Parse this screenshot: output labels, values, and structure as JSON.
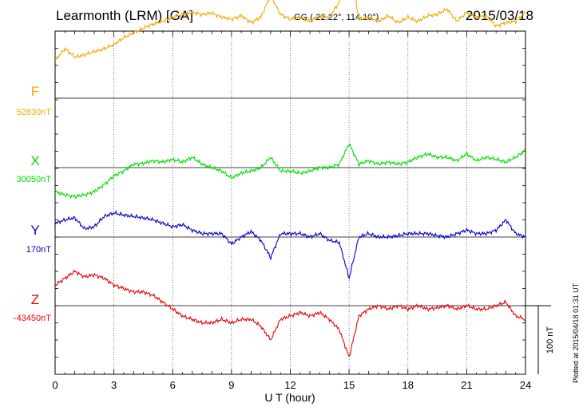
{
  "header": {
    "station": "Learmonth (LRM)  [GA]",
    "coords": "GG (-22.22°, 114.10°)",
    "date": "2015/03/18"
  },
  "side_note": "Plotted at 2015/04/18 01:31  UT",
  "scale_bar_label": "100 nT",
  "chart_data": {
    "type": "line",
    "xlabel": "U T (hour)",
    "x_ticks": [
      "0",
      "3",
      "6",
      "9",
      "12",
      "15",
      "18",
      "21",
      "24"
    ],
    "xlim": [
      0,
      24
    ],
    "grid": true,
    "scale_nT_per_bar": 100,
    "x": [
      0,
      0.5,
      1,
      1.5,
      2,
      2.5,
      3,
      3.5,
      4,
      4.5,
      5,
      5.5,
      6,
      6.5,
      7,
      7.5,
      8,
      8.5,
      9,
      9.5,
      10,
      10.5,
      11,
      11.5,
      12,
      12.5,
      13,
      13.5,
      14,
      14.5,
      15,
      15.5,
      16,
      16.5,
      17,
      17.5,
      18,
      18.5,
      19,
      19.5,
      20,
      20.5,
      21,
      21.5,
      22,
      22.5,
      23,
      23.5,
      24
    ],
    "series": [
      {
        "name": "F",
        "baseline_label": "52830nT",
        "color": "#f0a800",
        "values": [
          55,
          72,
          60,
          63,
          68,
          72,
          78,
          88,
          95,
          102,
          108,
          112,
          118,
          122,
          125,
          122,
          124,
          118,
          115,
          120,
          110,
          118,
          150,
          122,
          115,
          118,
          112,
          120,
          118,
          140,
          200,
          115,
          118,
          112,
          120,
          110,
          118,
          112,
          120,
          122,
          130,
          112,
          125,
          118,
          120,
          105,
          110,
          112,
          125
        ]
      },
      {
        "name": "X",
        "baseline_label": "30050nT",
        "color": "#00dd00",
        "values": [
          -35,
          -40,
          -42,
          -40,
          -35,
          -25,
          -12,
          -5,
          5,
          6,
          10,
          8,
          12,
          8,
          15,
          5,
          0,
          -5,
          -15,
          -8,
          -5,
          0,
          15,
          -5,
          -5,
          -8,
          -5,
          0,
          0,
          5,
          35,
          5,
          10,
          5,
          8,
          5,
          8,
          15,
          20,
          15,
          15,
          10,
          20,
          10,
          15,
          12,
          8,
          15,
          25
        ]
      },
      {
        "name": "Y",
        "baseline_label": "170nT",
        "color": "#0000cc",
        "values": [
          20,
          25,
          28,
          12,
          15,
          30,
          35,
          32,
          30,
          28,
          25,
          20,
          15,
          18,
          10,
          5,
          5,
          5,
          -10,
          0,
          8,
          -5,
          -30,
          5,
          5,
          5,
          0,
          5,
          -5,
          -8,
          -60,
          0,
          5,
          0,
          0,
          2,
          5,
          5,
          5,
          2,
          0,
          5,
          10,
          5,
          5,
          10,
          25,
          5,
          0
        ]
      },
      {
        "name": "Z",
        "baseline_label": "-43450nT",
        "color": "#ee0000",
        "values": [
          30,
          40,
          50,
          42,
          45,
          40,
          30,
          25,
          20,
          20,
          15,
          5,
          -5,
          -15,
          -20,
          -25,
          -25,
          -20,
          -25,
          -20,
          -20,
          -30,
          -50,
          -20,
          -15,
          -10,
          -15,
          -10,
          -20,
          -35,
          -75,
          -15,
          -5,
          0,
          -5,
          0,
          -5,
          0,
          -5,
          -3,
          0,
          -5,
          0,
          -5,
          -5,
          0,
          5,
          -15,
          -20
        ]
      }
    ]
  }
}
